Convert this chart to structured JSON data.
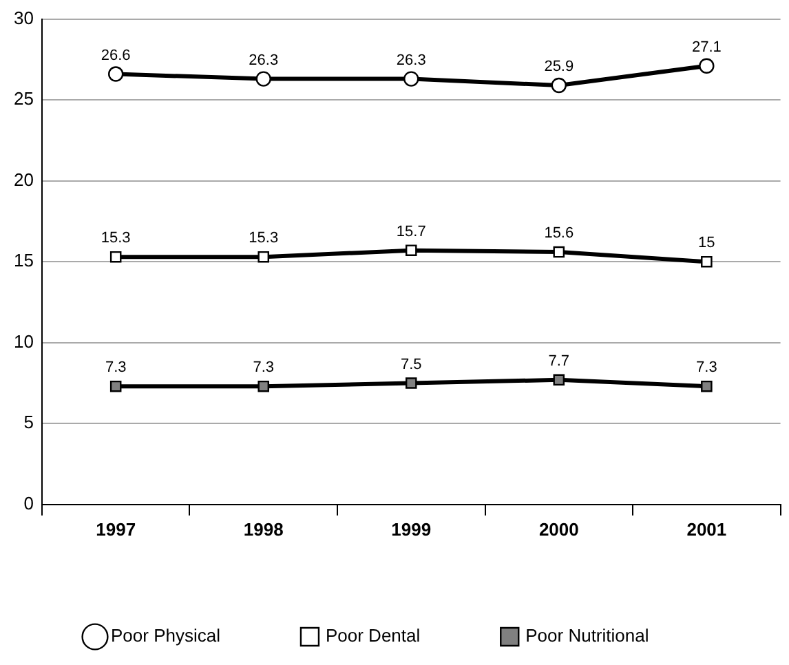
{
  "chart_data": {
    "type": "line",
    "categories": [
      "1997",
      "1998",
      "1999",
      "2000",
      "2001"
    ],
    "series": [
      {
        "name": "Poor Physical",
        "color": "#000000",
        "marker": "circle",
        "colors": [
          "#ffffff",
          "#ffffff",
          "#ffffff",
          "#ffffff",
          "#ffffff"
        ],
        "values": [
          26.6,
          26.3,
          26.3,
          25.9,
          27.1
        ]
      },
      {
        "name": "Poor Dental",
        "color": "#000000",
        "marker": "square",
        "colors": [
          "#ffffff",
          "#ffffff",
          "#ffffff",
          "#ffffff",
          "#ffffff"
        ],
        "values": [
          15.3,
          15.3,
          15.7,
          15.6,
          15
        ]
      },
      {
        "name": "Poor Nutritional",
        "color": "#000000",
        "marker": "square",
        "colors": [
          "#808080",
          "#808080",
          "#808080",
          "#808080",
          "#808080"
        ],
        "values": [
          7.3,
          7.3,
          7.5,
          7.7,
          7.3
        ]
      }
    ],
    "ylim": [
      0,
      30
    ],
    "yticks": [
      0,
      5,
      10,
      15,
      20,
      25,
      30
    ],
    "grid": "y",
    "legend": "bottom",
    "data_labels": true,
    "line_style": "solid"
  }
}
